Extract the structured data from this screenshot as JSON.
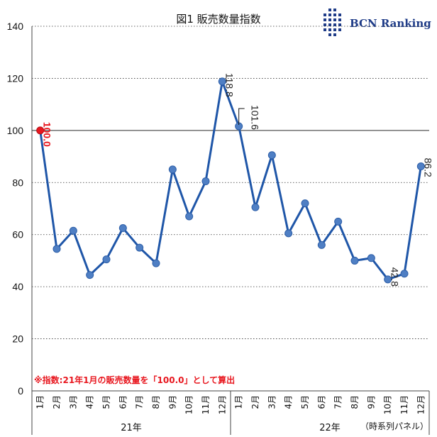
{
  "title": "図1  販売数量指数",
  "logo_text": "BCN Ranking",
  "note": "※指数:21年1月の販売数量を「100.0」として算出",
  "panel_note": "（時系列パネル）",
  "colors": {
    "line": "#1f56a8",
    "marker": "#4f7fc4",
    "highlight": "#e8171f",
    "logo": "#1f3c88"
  },
  "chart_data": {
    "type": "line",
    "title": "図1  販売数量指数",
    "categories": [
      "1月",
      "2月",
      "3月",
      "4月",
      "5月",
      "6月",
      "7月",
      "8月",
      "9月",
      "10月",
      "11月",
      "12月",
      "1月",
      "2月",
      "3月",
      "4月",
      "5月",
      "6月",
      "7月",
      "8月",
      "9月",
      "10月",
      "11月",
      "12月"
    ],
    "year_groups": [
      {
        "label": "21年",
        "start": 0,
        "end": 11
      },
      {
        "label": "22年",
        "start": 12,
        "end": 23
      }
    ],
    "series": [
      {
        "values": [
          100.0,
          54.5,
          61.5,
          44.5,
          50.5,
          62.5,
          55.0,
          49.0,
          85.0,
          67.0,
          80.5,
          118.8,
          101.6,
          70.5,
          90.5,
          60.5,
          72.0,
          56.0,
          65.0,
          50.0,
          51.0,
          42.8,
          45.0,
          86.2
        ]
      }
    ],
    "data_labels": [
      {
        "index": 0,
        "text": "100.0",
        "highlight": true
      },
      {
        "index": 11,
        "text": "118.8"
      },
      {
        "index": 12,
        "text": "101.6"
      },
      {
        "index": 21,
        "text": "42.8"
      },
      {
        "index": 23,
        "text": "86.2"
      }
    ],
    "ylim": [
      0,
      140
    ],
    "yticks": [
      0,
      20,
      40,
      60,
      80,
      100,
      120,
      140
    ],
    "grid": true
  }
}
